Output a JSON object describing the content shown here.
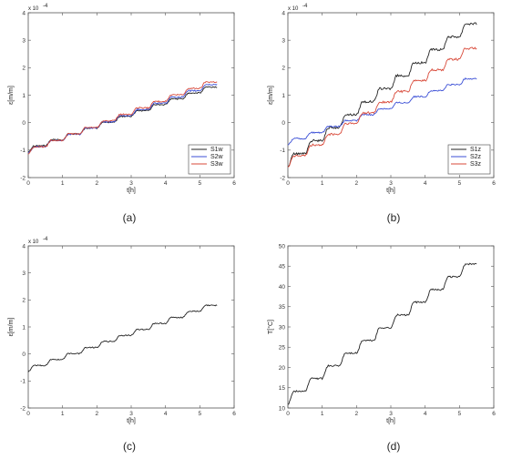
{
  "chart_data": [
    {
      "type": "line",
      "caption": "(a)",
      "xlabel": "t[h]",
      "ylabel": "ε[m/m]",
      "exponent": "x 10",
      "exponent_power": "-4",
      "xlim": [
        0,
        6
      ],
      "ylim": [
        -2,
        4
      ],
      "xticks": [
        0,
        1,
        2,
        3,
        4,
        5,
        6
      ],
      "yticks": [
        -2,
        -1,
        0,
        1,
        2,
        3,
        4
      ],
      "legend_position": "bottom-right",
      "series": [
        {
          "name": "S1w",
          "color": "#222222",
          "t_start": 0.0,
          "t_end": 5.5,
          "v_start": -1.05,
          "step_rise": 0.35,
          "step_noise": 0.05,
          "scale_factor": 0.97
        },
        {
          "name": "S2w",
          "color": "#3b4fd6",
          "t_start": 0.0,
          "t_end": 5.5,
          "v_start": -1.1,
          "step_rise": 0.36,
          "step_noise": 0.05,
          "scale_factor": 1.0
        },
        {
          "name": "S3w",
          "color": "#d94a3a",
          "t_start": 0.0,
          "t_end": 5.5,
          "v_start": -1.12,
          "step_rise": 0.37,
          "step_noise": 0.05,
          "scale_factor": 1.02
        }
      ]
    },
    {
      "type": "line",
      "caption": "(b)",
      "xlabel": "t[h]",
      "ylabel": "ε[m/m]",
      "exponent": "x 10",
      "exponent_power": "-4",
      "xlim": [
        0,
        6
      ],
      "ylim": [
        -2,
        4
      ],
      "xticks": [
        0,
        1,
        2,
        3,
        4,
        5,
        6
      ],
      "yticks": [
        -2,
        -1,
        0,
        1,
        2,
        3,
        4
      ],
      "legend_position": "bottom-right",
      "series": [
        {
          "name": "S1z",
          "color": "#222222",
          "t_start": 0.0,
          "t_end": 5.5,
          "v_start": -1.6,
          "v_end": 3.6,
          "step_noise": 0.08
        },
        {
          "name": "S2z",
          "color": "#3b4fd6",
          "t_start": 0.0,
          "t_end": 5.5,
          "v_start": -0.8,
          "v_end": 1.6,
          "step_noise": 0.05
        },
        {
          "name": "S3z",
          "color": "#d94a3a",
          "t_start": 0.0,
          "t_end": 5.5,
          "v_start": -1.6,
          "v_end": 2.7,
          "step_noise": 0.08
        }
      ]
    },
    {
      "type": "line",
      "caption": "(c)",
      "xlabel": "t[h]",
      "ylabel": "ε[m/m]",
      "exponent": "x 10",
      "exponent_power": "-4",
      "xlim": [
        0,
        6
      ],
      "ylim": [
        -2,
        4
      ],
      "xticks": [
        0,
        1,
        2,
        3,
        4,
        5,
        6
      ],
      "yticks": [
        -2,
        -1,
        0,
        1,
        2,
        3,
        4
      ],
      "series": [
        {
          "name": "",
          "color": "#222222",
          "t_start": 0.0,
          "t_end": 5.5,
          "v_start": -0.65,
          "v_end": 1.8,
          "step_noise": 0.04
        }
      ]
    },
    {
      "type": "line",
      "caption": "(d)",
      "xlabel": "t[h]",
      "ylabel": "T[°C]",
      "xlim": [
        0,
        6
      ],
      "ylim": [
        10,
        50
      ],
      "xticks": [
        0,
        1,
        2,
        3,
        4,
        5,
        6
      ],
      "yticks": [
        10,
        15,
        20,
        25,
        30,
        35,
        40,
        45,
        50
      ],
      "series": [
        {
          "name": "",
          "color": "#222222",
          "t_start": 0.0,
          "t_end": 5.5,
          "v_start": 11,
          "v_end": 45.5,
          "step_noise": 0.4
        }
      ]
    }
  ]
}
